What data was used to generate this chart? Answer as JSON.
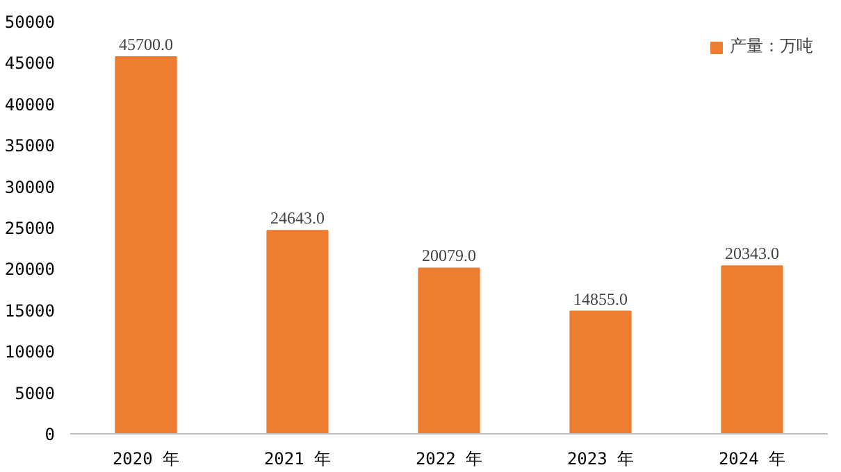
{
  "chart_data": {
    "type": "bar",
    "categories": [
      "2020 年",
      "2021 年",
      "2022 年",
      "2023 年",
      "2024 年"
    ],
    "series": [
      {
        "name": "产量：万吨",
        "color": "#ed7d31",
        "values": [
          45700,
          24643,
          20079,
          14855,
          20343
        ],
        "value_labels": [
          "45700.0",
          "24643.0",
          "20079.0",
          "14855.0",
          "20343.0"
        ]
      }
    ],
    "ylim": [
      0,
      50000
    ],
    "yticks": [
      0,
      5000,
      10000,
      15000,
      20000,
      25000,
      30000,
      35000,
      40000,
      45000,
      50000
    ],
    "grid": false,
    "legend": "top right"
  }
}
